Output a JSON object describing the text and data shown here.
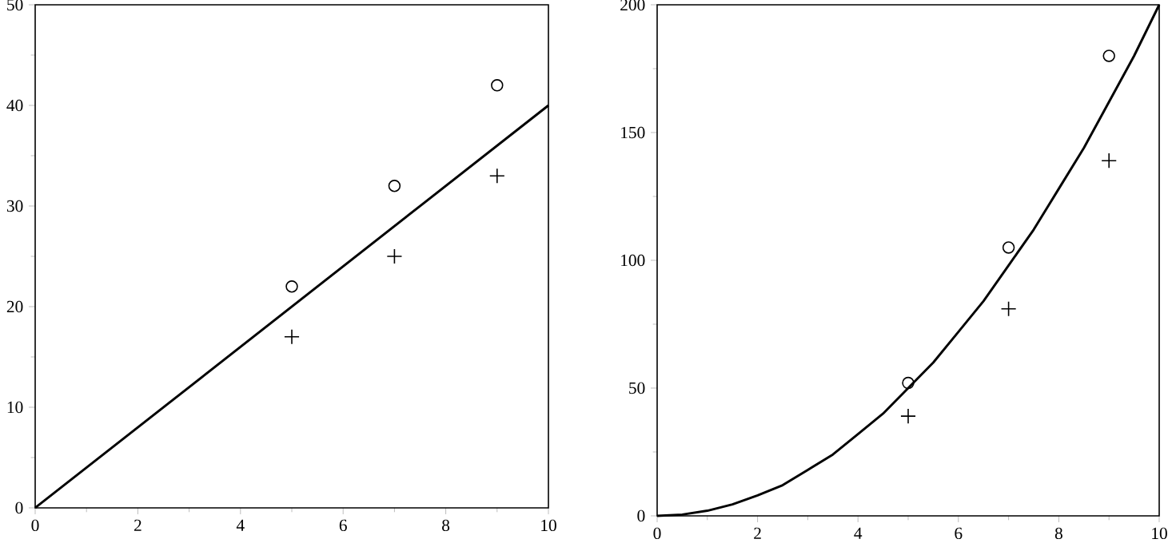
{
  "chart_data": [
    {
      "type": "scatter",
      "xlim": [
        0,
        10
      ],
      "ylim": [
        0,
        50
      ],
      "xticks": [
        0,
        2,
        4,
        6,
        8,
        10
      ],
      "yticks": [
        0,
        10,
        20,
        30,
        40,
        50
      ],
      "grid": false,
      "series": [
        {
          "type": "line",
          "color": "#000000",
          "line_style": "solid",
          "marker": "none",
          "x": [
            0,
            10
          ],
          "values": [
            0,
            40
          ]
        },
        {
          "color": "#000000",
          "marker": "circle",
          "x": [
            5,
            7,
            9
          ],
          "values": [
            22,
            32,
            42
          ]
        },
        {
          "color": "#000000",
          "marker": "cross",
          "x": [
            5,
            7,
            9
          ],
          "values": [
            17,
            25,
            33
          ]
        }
      ]
    },
    {
      "type": "scatter",
      "xlim": [
        0,
        10
      ],
      "ylim": [
        0,
        200
      ],
      "xticks": [
        0,
        2,
        4,
        6,
        8,
        10
      ],
      "yticks": [
        0,
        50,
        100,
        150,
        200
      ],
      "grid": false,
      "series": [
        {
          "type": "line",
          "color": "#000000",
          "line_style": "solid",
          "marker": "none",
          "x": [
            0,
            0.5,
            1,
            1.5,
            2,
            2.5,
            3,
            3.5,
            4,
            4.5,
            5,
            5.5,
            6,
            6.5,
            7,
            7.5,
            8,
            8.5,
            9,
            9.5,
            10
          ],
          "values": [
            0,
            0.5,
            2,
            4.5,
            8,
            12,
            18,
            24,
            32,
            40,
            50,
            60,
            72,
            84,
            98,
            112,
            128,
            144,
            162,
            180,
            200
          ]
        },
        {
          "color": "#000000",
          "marker": "circle",
          "x": [
            5,
            7,
            9
          ],
          "values": [
            52,
            105,
            180
          ]
        },
        {
          "color": "#000000",
          "marker": "cross",
          "x": [
            5,
            7,
            9
          ],
          "values": [
            39,
            81,
            139
          ]
        }
      ]
    }
  ]
}
